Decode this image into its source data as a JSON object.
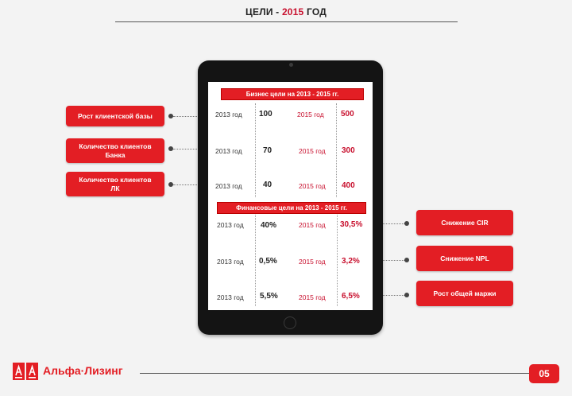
{
  "title": {
    "prefix": "ЦЕЛИ -",
    "year": "2015",
    "suffix": "ГОД"
  },
  "business": {
    "header": "Бизнес цели на 2013 - 2015 гг.",
    "rows": [
      {
        "label": "Рост клиентской базы",
        "y1": "2013 год",
        "v1": "100",
        "y2": "2015 год",
        "v2": "500"
      },
      {
        "label": "Количество клиентов Банка",
        "y1": "2013 год",
        "v1": "70",
        "y2": "2015 год",
        "v2": "300"
      },
      {
        "label": "Количество клиентов ЛК",
        "y1": "2013 год",
        "v1": "40",
        "y2": "2015 год",
        "v2": "400"
      }
    ]
  },
  "finance": {
    "header": "Финансовые цели на 2013 - 2015 гг.",
    "rows": [
      {
        "label": "Снижение CIR",
        "y1": "2013 год",
        "v1": "40%",
        "y2": "2015 год",
        "v2": "30,5%"
      },
      {
        "label": "Снижение NPL",
        "y1": "2013 год",
        "v1": "0,5%",
        "y2": "2015 год",
        "v2": "3,2%"
      },
      {
        "label": "Рост общей маржи",
        "y1": "2013 год",
        "v1": "5,5%",
        "y2": "2015 год",
        "v2": "6,5%"
      }
    ]
  },
  "footer": {
    "brand": "Альфа·Лизинг",
    "page": "05"
  },
  "colors": {
    "accent": "#e31e24",
    "text_red": "#c8102e"
  }
}
